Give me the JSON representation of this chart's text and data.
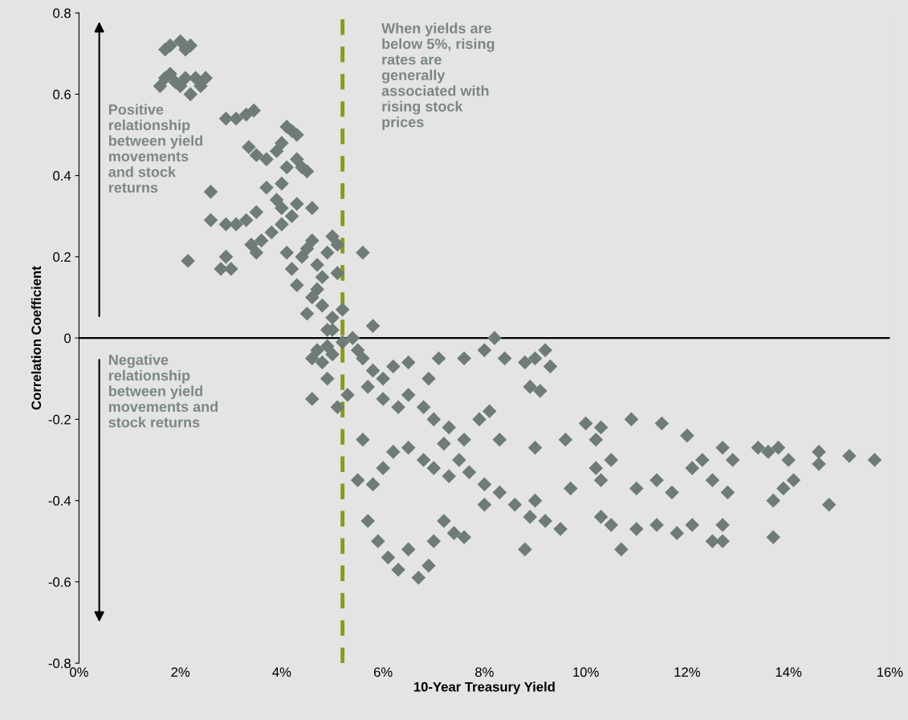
{
  "chart_data": {
    "type": "scatter",
    "xlabel": "10-Year Treasury Yield",
    "ylabel": "Correlation Coefficient",
    "x": [
      1.7,
      1.8,
      2.0,
      2.1,
      2.2,
      1.6,
      1.7,
      1.8,
      1.9,
      2.0,
      2.1,
      2.2,
      2.3,
      2.5,
      2.4,
      2.9,
      3.1,
      3.3,
      3.45,
      2.6,
      2.15,
      2.6,
      2.9,
      3.1,
      3.3,
      3.5,
      2.8,
      3.0,
      2.9,
      3.4,
      3.6,
      3.8,
      4.0,
      3.5,
      3.35,
      3.5,
      3.7,
      3.9,
      4.1,
      4.2,
      4.3,
      4.0,
      4.1,
      4.3,
      4.4,
      4.5,
      3.7,
      3.9,
      4.0,
      4.2,
      4.3,
      4.0,
      4.1,
      4.2,
      4.3,
      4.4,
      4.5,
      4.6,
      4.6,
      4.7,
      4.8,
      4.9,
      5.0,
      5.1,
      5.1,
      4.5,
      4.6,
      4.7,
      4.8,
      4.9,
      5.0,
      5.2,
      5.0,
      5.6,
      4.6,
      4.7,
      4.8,
      4.9,
      5.0,
      5.2,
      5.4,
      5.5,
      5.8,
      4.6,
      4.9,
      5.1,
      5.3,
      5.6,
      5.8,
      6.0,
      6.2,
      6.5,
      6.9,
      7.1,
      7.6,
      8.2,
      8.0,
      8.4,
      8.8,
      9.0,
      9.2,
      9.3,
      8.9,
      9.1,
      5.7,
      6.0,
      6.3,
      6.5,
      6.8,
      7.0,
      7.3,
      7.6,
      7.9,
      8.1,
      8.3,
      5.6,
      5.8,
      6.0,
      6.2,
      6.5,
      6.8,
      7.0,
      7.3,
      7.5,
      7.7,
      8.0,
      8.3,
      8.6,
      8.9,
      9.2,
      9.5,
      5.5,
      5.7,
      5.9,
      6.1,
      6.3,
      6.5,
      6.7,
      6.9,
      7.0,
      7.2,
      7.4,
      7.6,
      8.0,
      8.8,
      9.0,
      9.6,
      10.0,
      10.2,
      10.3,
      10.5,
      10.9,
      11.5,
      12.0,
      10.2,
      10.3,
      11.0,
      11.4,
      11.7,
      12.1,
      12.3,
      10.3,
      10.5,
      10.7,
      11.0,
      11.4,
      11.8,
      12.1,
      12.5,
      12.5,
      12.7,
      12.9,
      12.8,
      12.7,
      12.7,
      13.4,
      13.6,
      13.8,
      14.0,
      13.7,
      13.7,
      14.1,
      13.9,
      14.6,
      14.6,
      14.8,
      15.2,
      15.7,
      9.7,
      9.0,
      7.2
    ],
    "series": [
      {
        "color": "#6e7b77",
        "values": [
          0.71,
          0.72,
          0.73,
          0.71,
          0.72,
          0.62,
          0.64,
          0.65,
          0.63,
          0.62,
          0.64,
          0.6,
          0.64,
          0.64,
          0.62,
          0.54,
          0.54,
          0.55,
          0.56,
          0.36,
          0.19,
          0.29,
          0.28,
          0.28,
          0.29,
          0.31,
          0.17,
          0.17,
          0.2,
          0.23,
          0.24,
          0.26,
          0.28,
          0.21,
          0.47,
          0.45,
          0.44,
          0.46,
          0.52,
          0.51,
          0.5,
          0.48,
          0.42,
          0.44,
          0.42,
          0.41,
          0.37,
          0.34,
          0.32,
          0.3,
          0.33,
          0.38,
          0.21,
          0.17,
          0.13,
          0.2,
          0.22,
          0.24,
          0.32,
          0.18,
          0.15,
          0.21,
          0.25,
          0.23,
          0.16,
          0.06,
          0.1,
          0.12,
          0.08,
          0.02,
          0.05,
          0.07,
          0.02,
          0.21,
          -0.05,
          -0.03,
          -0.06,
          -0.02,
          -0.04,
          -0.01,
          0.0,
          -0.03,
          0.03,
          -0.15,
          -0.1,
          -0.17,
          -0.14,
          -0.05,
          -0.08,
          -0.1,
          -0.07,
          -0.06,
          -0.1,
          -0.05,
          -0.05,
          0.0,
          -0.03,
          -0.05,
          -0.06,
          -0.05,
          -0.03,
          -0.07,
          -0.12,
          -0.13,
          -0.12,
          -0.15,
          -0.17,
          -0.14,
          -0.17,
          -0.2,
          -0.22,
          -0.25,
          -0.2,
          -0.18,
          -0.25,
          -0.25,
          -0.36,
          -0.32,
          -0.28,
          -0.27,
          -0.3,
          -0.32,
          -0.34,
          -0.3,
          -0.33,
          -0.36,
          -0.38,
          -0.41,
          -0.44,
          -0.45,
          -0.47,
          -0.35,
          -0.45,
          -0.5,
          -0.54,
          -0.57,
          -0.52,
          -0.59,
          -0.56,
          -0.5,
          -0.45,
          -0.48,
          -0.49,
          -0.41,
          -0.52,
          -0.27,
          -0.25,
          -0.21,
          -0.25,
          -0.22,
          -0.3,
          -0.2,
          -0.21,
          -0.24,
          -0.32,
          -0.35,
          -0.37,
          -0.35,
          -0.38,
          -0.32,
          -0.3,
          -0.44,
          -0.46,
          -0.52,
          -0.47,
          -0.46,
          -0.48,
          -0.46,
          -0.5,
          -0.35,
          -0.27,
          -0.3,
          -0.38,
          -0.46,
          -0.5,
          -0.27,
          -0.28,
          -0.27,
          -0.3,
          -0.4,
          -0.49,
          -0.35,
          -0.37,
          -0.28,
          -0.31,
          -0.41,
          -0.29,
          -0.3,
          -0.37,
          -0.4,
          -0.26
        ]
      }
    ],
    "marker": "diamond",
    "xlim": [
      0,
      16
    ],
    "xticks": [
      {
        "value": 0,
        "label": "0%"
      },
      {
        "value": 2,
        "label": "2%"
      },
      {
        "value": 4,
        "label": "4%"
      },
      {
        "value": 6,
        "label": "6%"
      },
      {
        "value": 8,
        "label": "8%"
      },
      {
        "value": 10,
        "label": "10%"
      },
      {
        "value": 12,
        "label": "12%"
      },
      {
        "value": 14,
        "label": "14%"
      },
      {
        "value": 16,
        "label": "16%"
      }
    ],
    "ylim": [
      -0.8,
      0.8
    ],
    "yticks": [
      -0.8,
      -0.6,
      -0.4,
      -0.2,
      0,
      0.2,
      0.4,
      0.6,
      0.8
    ],
    "ref_lines": [
      {
        "axis": "x",
        "value": 5.2,
        "color": "#8b9a1e",
        "line_style": "dashed"
      },
      {
        "axis": "y",
        "value": 0,
        "color": "#000000",
        "line_style": "solid"
      }
    ],
    "annotations": [
      "When yields are\nbelow 5%, rising\nrates are\ngenerally\nassociated with\nrising stock\nprices",
      "Positive\nrelationship\nbetween yield\nmovements\nand stock\nreturns",
      "Negative\nrelationship\nbetween yield\nmovements and\nstock returns"
    ],
    "grid": false,
    "legend": false
  }
}
